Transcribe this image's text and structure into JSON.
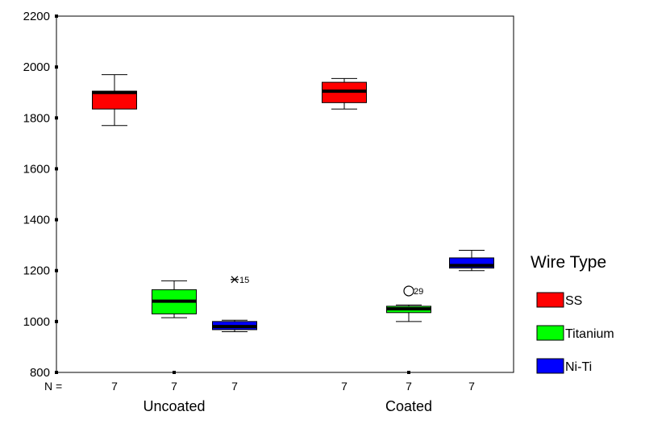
{
  "chart_data": {
    "type": "boxplot",
    "title": "",
    "xlabel": "",
    "ylabel": "",
    "ylim": [
      800,
      2200
    ],
    "yticks": [
      800,
      1000,
      1200,
      1400,
      1600,
      1800,
      2000,
      2200
    ],
    "grid": false,
    "legend_position": "right",
    "legend_title": "Wire Type",
    "n_label": "N =",
    "groups": [
      "Uncoated",
      "Coated"
    ],
    "series": [
      {
        "name": "SS",
        "color": "#ff0000"
      },
      {
        "name": "Titanium",
        "color": "#00ff00"
      },
      {
        "name": "Ni-Ti",
        "color": "#0000ff"
      }
    ],
    "boxes": [
      {
        "group": "Uncoated",
        "series": "SS",
        "n": "7",
        "min": 1770,
        "q1": 1835,
        "median": 1900,
        "q3": 1905,
        "max": 1970,
        "outliers": []
      },
      {
        "group": "Uncoated",
        "series": "Titanium",
        "n": "7",
        "min": 1015,
        "q1": 1030,
        "median": 1080,
        "q3": 1125,
        "max": 1160,
        "outliers": []
      },
      {
        "group": "Uncoated",
        "series": "Ni-Ti",
        "n": "7",
        "min": 960,
        "q1": 968,
        "median": 980,
        "q3": 1000,
        "max": 1005,
        "outliers": [
          {
            "value": 1165,
            "label": "15",
            "marker": "star"
          }
        ]
      },
      {
        "group": "Coated",
        "series": "SS",
        "n": "7",
        "min": 1835,
        "q1": 1860,
        "median": 1905,
        "q3": 1940,
        "max": 1955,
        "outliers": []
      },
      {
        "group": "Coated",
        "series": "Titanium",
        "n": "7",
        "min": 1000,
        "q1": 1035,
        "median": 1050,
        "q3": 1060,
        "max": 1065,
        "outliers": [
          {
            "value": 1120,
            "label": "29",
            "marker": "circle"
          }
        ]
      },
      {
        "group": "Coated",
        "series": "Ni-Ti",
        "n": "7",
        "min": 1200,
        "q1": 1210,
        "median": 1220,
        "q3": 1250,
        "max": 1280,
        "outliers": []
      }
    ]
  }
}
